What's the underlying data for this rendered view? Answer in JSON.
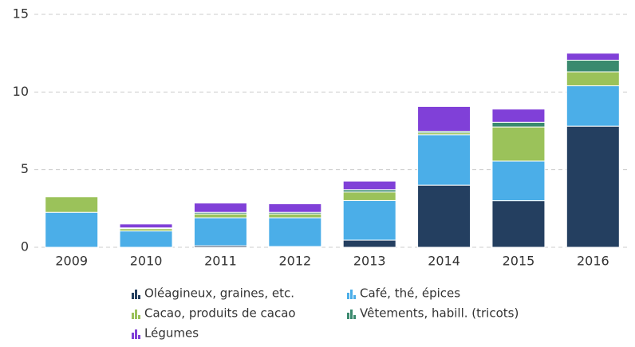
{
  "chart_data": {
    "type": "stacked_bar",
    "categories": [
      "2009",
      "2010",
      "2011",
      "2012",
      "2013",
      "2014",
      "2015",
      "2016"
    ],
    "series": [
      {
        "name": "Oléagineux, graines, etc.",
        "color": "#243f60",
        "values": [
          0,
          0,
          0.1,
          0.05,
          0.46,
          4.0,
          3.0,
          7.8
        ]
      },
      {
        "name": "Café, thé, épices",
        "color": "#4baee8",
        "values": [
          2.25,
          1.05,
          1.8,
          1.85,
          2.55,
          3.25,
          2.55,
          2.6
        ]
      },
      {
        "name": "Cacao, produits de cacao",
        "color": "#9bc25a",
        "values": [
          1.0,
          0.15,
          0.25,
          0.25,
          0.55,
          0.12,
          2.2,
          0.9
        ]
      },
      {
        "name": "Vêtements, habill. (tricots)",
        "color": "#3a8a6e",
        "values": [
          0,
          0.05,
          0.1,
          0.1,
          0.15,
          0.1,
          0.3,
          0.75
        ]
      },
      {
        "name": "Légumes",
        "color": "#8040d8",
        "values": [
          0,
          0.25,
          0.6,
          0.55,
          0.55,
          1.6,
          0.85,
          0.45
        ]
      }
    ],
    "ylim": [
      0,
      15
    ],
    "yticks": [
      0,
      5,
      10,
      15
    ],
    "grid": true
  }
}
